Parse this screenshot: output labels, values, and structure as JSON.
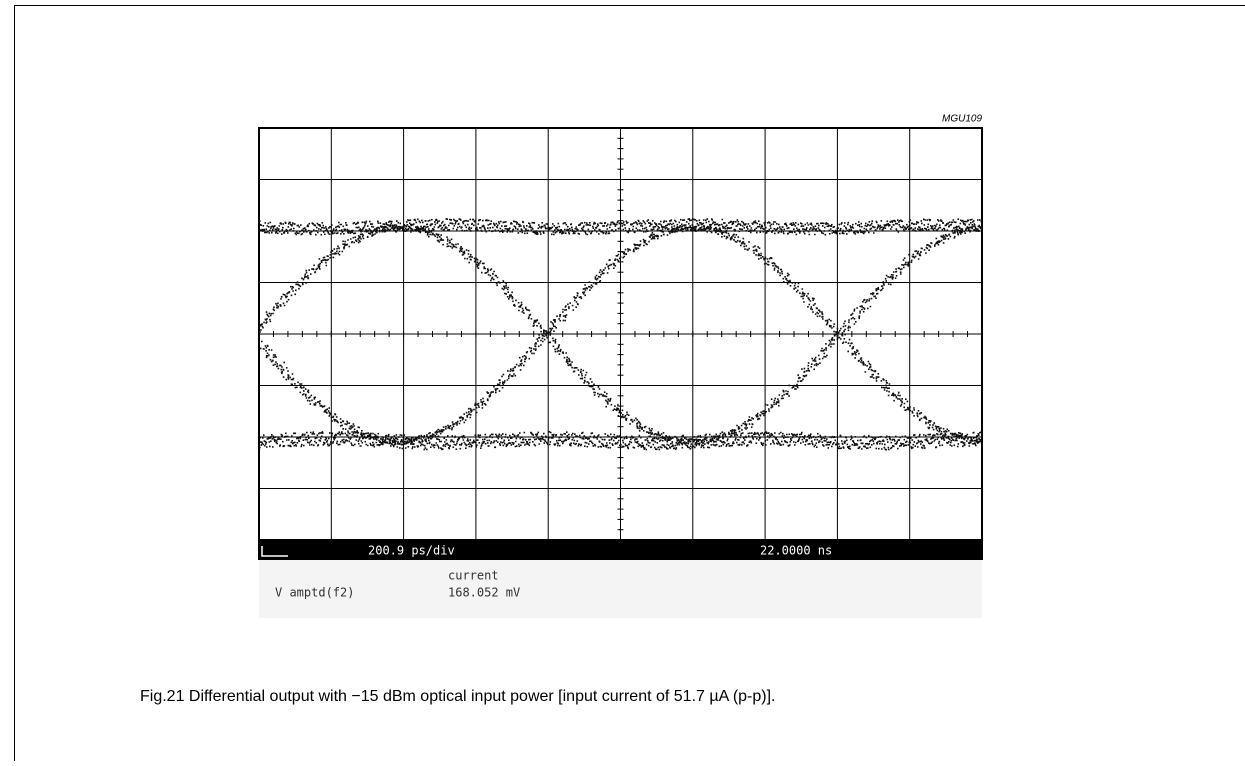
{
  "figure": {
    "code": "MGU109",
    "scope": {
      "timebase": "200.9 ps/div",
      "position": "22.0000 ns",
      "column_header": "current",
      "measurement_name": "V amptd(f2)",
      "measurement_value": "168.052 mV"
    },
    "caption": "Fig.21  Differential output with −15 dBm optical input power [input current of 51.7 µA (p-p)]."
  }
}
